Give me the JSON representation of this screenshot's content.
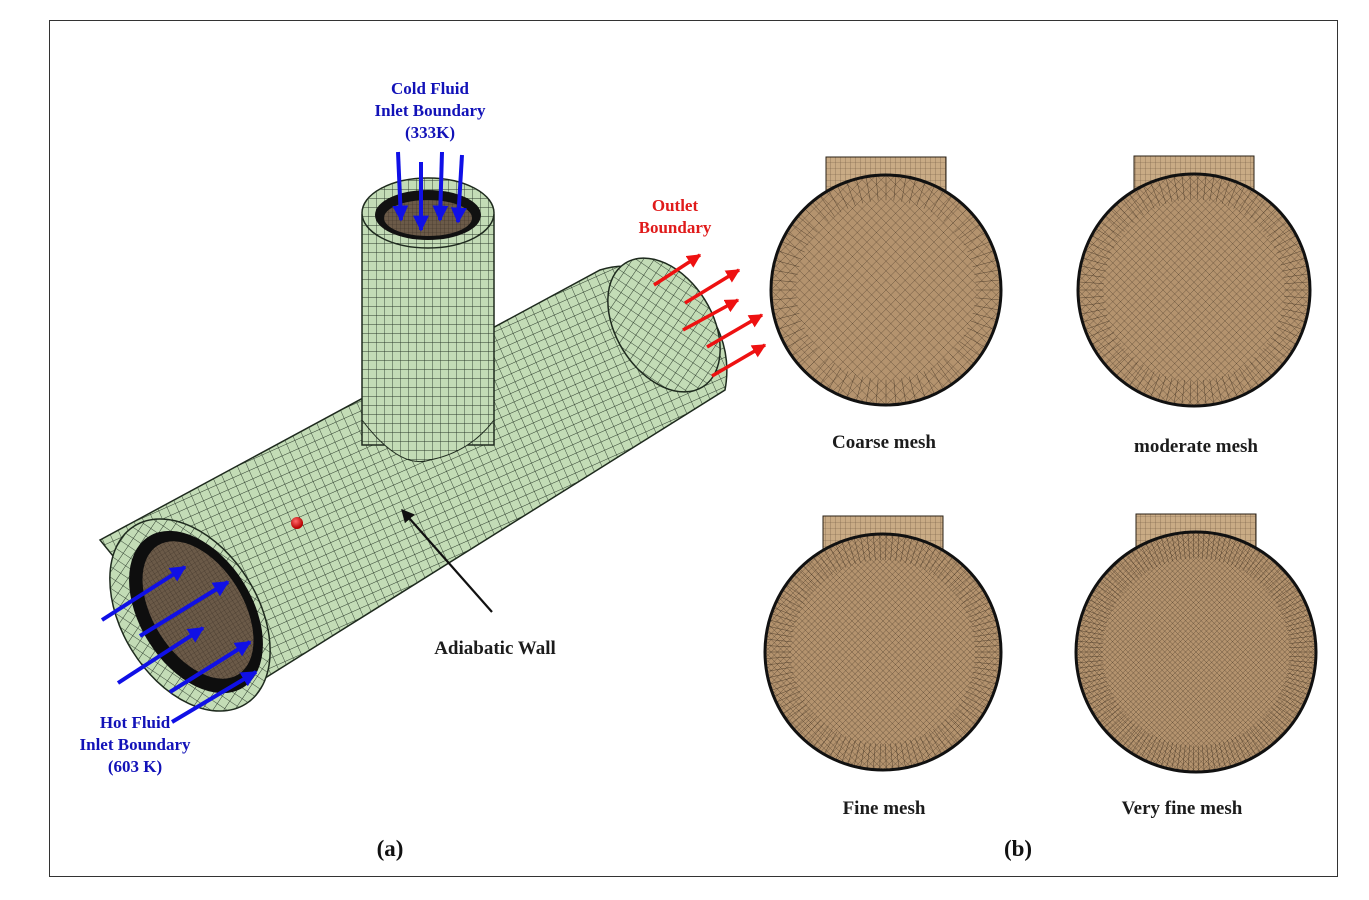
{
  "panel_a": {
    "cold_inlet": [
      "Cold Fluid",
      "Inlet Boundary",
      "(333K)"
    ],
    "outlet": [
      "Outlet",
      "Boundary"
    ],
    "hot_inlet": [
      "Hot Fluid",
      "Inlet Boundary",
      "(603 K)"
    ],
    "wall_label": "Adiabatic Wall",
    "caption": "(a)"
  },
  "panel_b": {
    "meshes": [
      {
        "label": "Coarse mesh"
      },
      {
        "label": "moderate mesh"
      },
      {
        "label": "Fine mesh"
      },
      {
        "label": "Very fine mesh"
      }
    ],
    "caption": "(b)"
  },
  "colors": {
    "pipe_mesh": "#c3dcb6",
    "mesh_line": "#2b3a2b",
    "cross_section": "#b4936e",
    "cold_arrow": "#1010e6",
    "outlet_arrow": "#ee1111",
    "hot_arrow": "#1010e6"
  }
}
